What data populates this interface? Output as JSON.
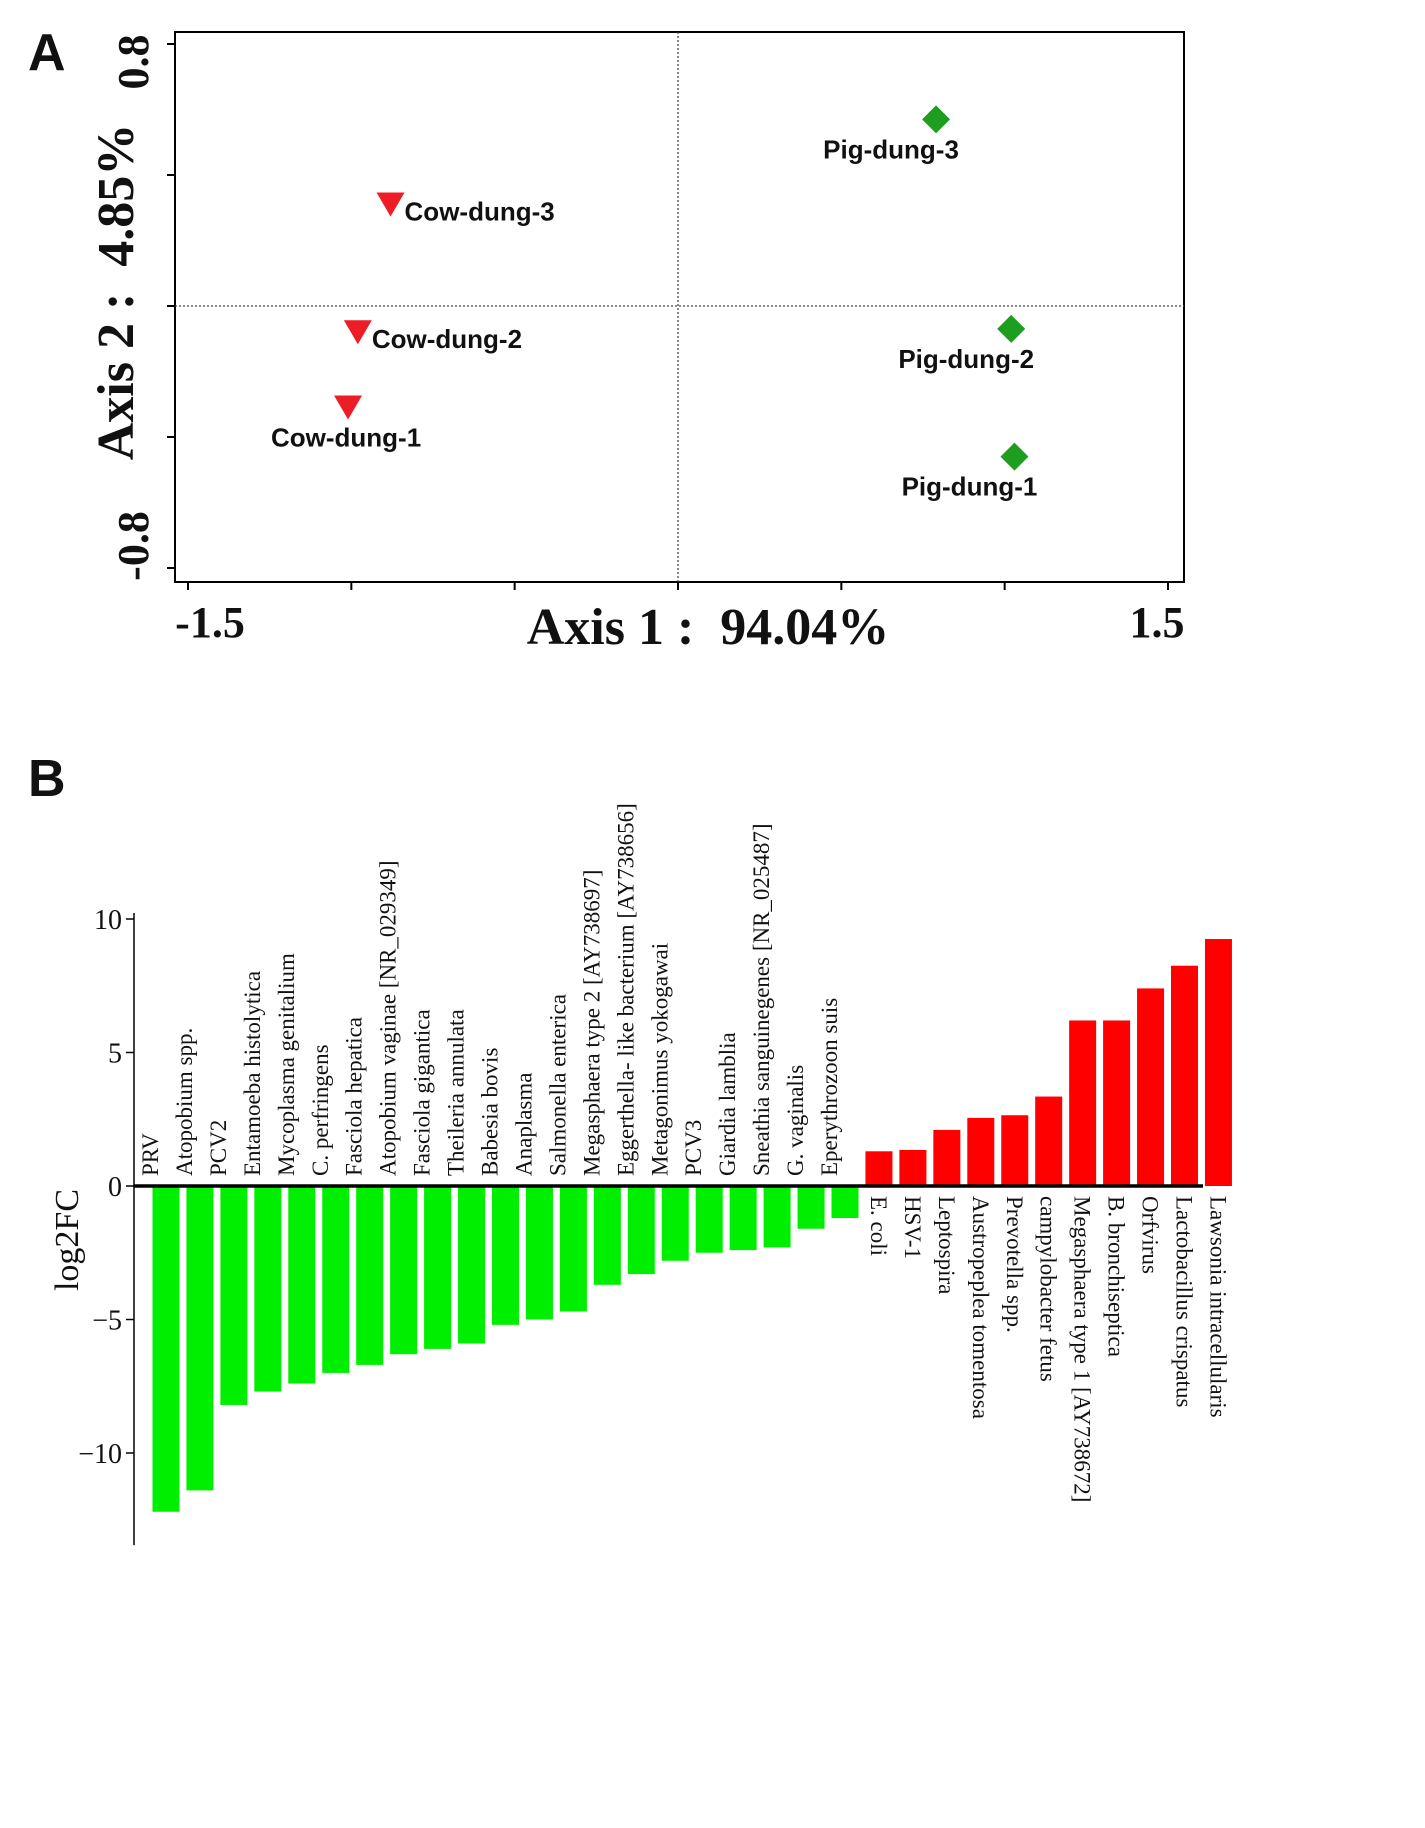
{
  "panels": {
    "a": {
      "letter": "A"
    },
    "b": {
      "letter": "B"
    }
  },
  "chart_data": [
    {
      "type": "scatter",
      "panel": "A",
      "title": "",
      "xlabel": "Axis 1 :  94.04%",
      "ylabel": "Axis 2 :  4.85%",
      "xlim": [
        -1.5,
        1.5
      ],
      "ylim": [
        -0.8,
        0.8
      ],
      "x_tick_labels": [
        "-1.5",
        "1.5"
      ],
      "y_tick_labels": [
        "-0.8",
        "0.8"
      ],
      "reference_lines": {
        "x": 0,
        "y": 0
      },
      "colors": {
        "cow": "#ee1c25",
        "pig": "#1e9e1e"
      },
      "series": [
        {
          "name": "Cow-dung",
          "marker": "triangle-down",
          "color": "#ee1c25",
          "points": [
            {
              "label": "Cow-dung-1",
              "x": -1.01,
              "y": -0.31
            },
            {
              "label": "Cow-dung-2",
              "x": -0.98,
              "y": -0.08
            },
            {
              "label": "Cow-dung-3",
              "x": -0.88,
              "y": 0.31
            }
          ]
        },
        {
          "name": "Pig-dung",
          "marker": "diamond",
          "color": "#1e9e1e",
          "points": [
            {
              "label": "Pig-dung-1",
              "x": 1.03,
              "y": -0.46
            },
            {
              "label": "Pig-dung-2",
              "x": 1.02,
              "y": -0.07
            },
            {
              "label": "Pig-dung-3",
              "x": 0.79,
              "y": 0.57
            }
          ]
        }
      ]
    },
    {
      "type": "bar",
      "panel": "B",
      "title": "",
      "xlabel": "",
      "ylabel": "log2FC",
      "ylim": [
        -13,
        10
      ],
      "y_ticks": [
        10,
        5,
        0,
        -5,
        -10
      ],
      "y_tick_labels": [
        "10",
        "5",
        "0",
        "−5",
        "−10"
      ],
      "colors": {
        "negative": "#00ee00",
        "positive": "#ff0000"
      },
      "categories": [
        "PRV",
        "Atopobium spp.",
        "PCV2",
        "Entamoeba histolytica",
        "Mycoplasma genitalium",
        "C. perfringens",
        "Fasciola hepatica",
        "Atopobium vaginae [NR_029349]",
        "Fasciola gigantica",
        "Theileria annulata",
        "Babesia bovis",
        "Anaplasma",
        "Salmonella enterica",
        "Megasphaera type 2 [AY738697]",
        "Eggerthella- like  bacterium [AY738656]",
        "Metagonimus yokogawai",
        "PCV3",
        "Giardia lamblia",
        "Sneathia sanguinegenes [NR_025487]",
        "G. vaginalis",
        "Eperythrozoon suis",
        "E. coli",
        "HSV-1",
        "Leptospira",
        "Austropeplea tomentosa",
        "Prevotella spp.",
        "campylobacter fetus",
        "Megasphaera type 1 [AY738672]",
        "B. bronchiseptica",
        "Orfvirus",
        "Lactobacillus crispatus",
        "Lawsonia intracellularis"
      ],
      "values": [
        -12.2,
        -11.4,
        -8.2,
        -7.7,
        -7.4,
        -7.0,
        -6.7,
        -6.3,
        -6.1,
        -5.9,
        -5.2,
        -5.0,
        -4.7,
        -3.7,
        -3.3,
        -2.8,
        -2.5,
        -2.4,
        -2.3,
        -1.6,
        -1.2,
        1.3,
        1.35,
        2.1,
        2.55,
        2.65,
        3.35,
        6.2,
        6.2,
        7.4,
        8.25,
        9.25
      ]
    }
  ]
}
